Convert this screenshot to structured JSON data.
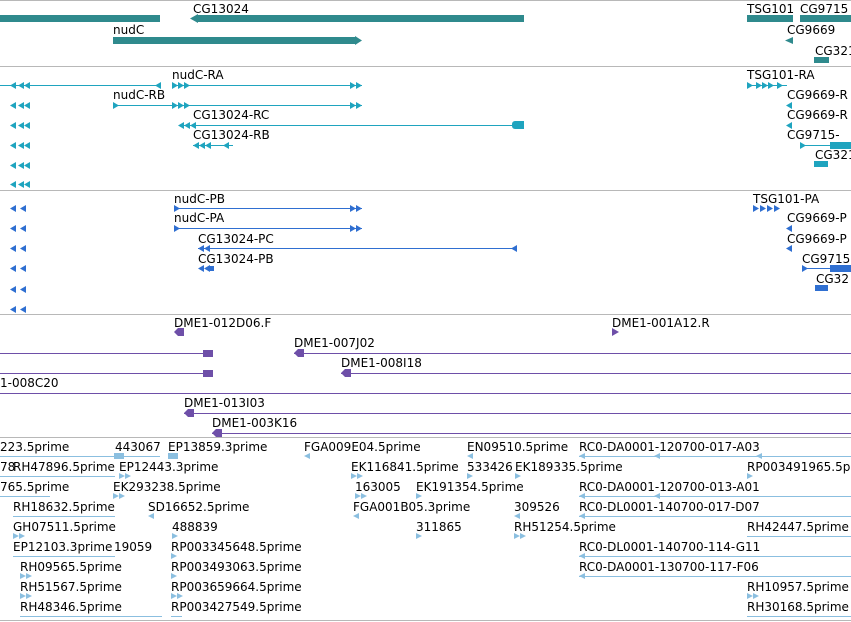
{
  "colors": {
    "gene": "#2f8a8d",
    "cdna": "#1fa4bf",
    "protein": "#2f6fd1",
    "clone": "#6e4fa8",
    "est": "#8bbfe0",
    "separator": "#b8b8b8"
  },
  "tracks": {
    "gene": {
      "labels": [
        "CG13024",
        "nudC",
        "TSG101",
        "CG9715",
        "CG9669",
        "CG321"
      ]
    },
    "transcript": {
      "labels": [
        "nudC-RA",
        "nudC-RB",
        "CG13024-RC",
        "CG13024-RB",
        "TSG101-RA",
        "CG9669-R",
        "CG9669-R",
        "CG9715-",
        "CG321"
      ]
    },
    "protein": {
      "labels": [
        "nudC-PB",
        "nudC-PA",
        "CG13024-PC",
        "CG13024-PB",
        "TSG101-PA",
        "CG9669-P",
        "CG9669-P",
        "CG9715",
        "CG32"
      ]
    },
    "clone": {
      "labels": [
        "DME1-012D06.F",
        "DME1-001A12.R",
        "DME1-007J02",
        "DME1-008I18",
        "1-008C20",
        "DME1-013I03",
        "DME1-003K16"
      ]
    },
    "est": {
      "labels": [
        "223.5prime",
        "443067",
        "EP13859.3prime",
        "FGA009E04.5prime",
        "EN09510.5prime",
        "RC0-DA0001-120700-017-A03",
        "78",
        "RH47896.5prime",
        "EP12443.3prime",
        "EK116841.5prime",
        "533426",
        "EK189335.5prime",
        "RP003491965.5p",
        "765.5prime",
        "EK293238.5prime",
        "163005",
        "EK191354.5prime",
        "RC0-DA0001-120700-013-A01",
        "RH18632.5prime",
        "SD16652.5prime",
        "FGA001B05.3prime",
        "309526",
        "RC0-DL0001-140700-017-D07",
        "GH07511.5prime",
        "488839",
        "311865",
        "RH51254.5prime",
        "RH42447.5prime",
        "EP12103.3prime",
        "19059",
        "RP003345648.5prime",
        "RC0-DL0001-140700-114-G11",
        "RH09565.5prime",
        "RP003493063.5prime",
        "RC0-DA0001-130700-117-F06",
        "RH51567.5prime",
        "RP003659664.5prime",
        "RH10957.5prime",
        "RH48346.5prime",
        "RP003427549.5prime",
        "RH30168.5prime"
      ]
    }
  }
}
